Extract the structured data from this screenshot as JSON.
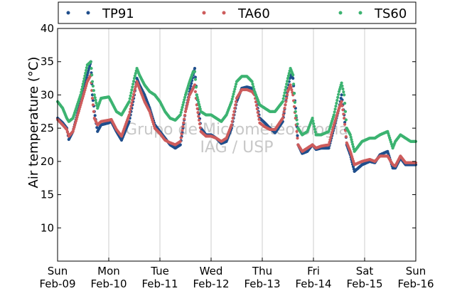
{
  "chart_data": {
    "type": "scatter",
    "title": "",
    "xlabel": "",
    "ylabel": "Air temperature (°C)",
    "x_unit": "days",
    "xlim": [
      0,
      7
    ],
    "ylim": [
      5,
      40
    ],
    "yticks": [
      10,
      15,
      20,
      25,
      30,
      35,
      40
    ],
    "xticks": [
      {
        "day": 0,
        "weekday": "Sun",
        "date": "Feb-09"
      },
      {
        "day": 1,
        "weekday": "Mon",
        "date": "Feb-10"
      },
      {
        "day": 2,
        "weekday": "Tue",
        "date": "Feb-11"
      },
      {
        "day": 3,
        "weekday": "Wed",
        "date": "Feb-12"
      },
      {
        "day": 4,
        "weekday": "Thu",
        "date": "Feb-13"
      },
      {
        "day": 5,
        "weekday": "Fri",
        "date": "Feb-14"
      },
      {
        "day": 6,
        "weekday": "Sat",
        "date": "Feb-15"
      },
      {
        "day": 7,
        "weekday": "Sun",
        "date": "Feb-16"
      }
    ],
    "grid": "vertical",
    "legend_position": "top",
    "watermark": [
      "Grupo de Micrometeorologia",
      "IAG / USP"
    ],
    "series": [
      {
        "name": "TP91",
        "color": "#1f4e8c",
        "points": [
          [
            0,
            26.5
          ],
          [
            0.1,
            25.8
          ],
          [
            0.18,
            25.0
          ],
          [
            0.22,
            23.3
          ],
          [
            0.3,
            24.5
          ],
          [
            0.45,
            29.0
          ],
          [
            0.58,
            33.0
          ],
          [
            0.65,
            35.0
          ],
          [
            0.68,
            30.0
          ],
          [
            0.72,
            27.5
          ],
          [
            0.78,
            24.5
          ],
          [
            0.85,
            25.5
          ],
          [
            1.0,
            25.8
          ],
          [
            1.05,
            26.0
          ],
          [
            1.15,
            24.5
          ],
          [
            1.25,
            23.2
          ],
          [
            1.4,
            26.0
          ],
          [
            1.5,
            30.0
          ],
          [
            1.55,
            32.5
          ],
          [
            1.6,
            31.5
          ],
          [
            1.7,
            30.0
          ],
          [
            1.8,
            28.0
          ],
          [
            1.9,
            25.5
          ],
          [
            2.0,
            24.5
          ],
          [
            2.1,
            23.5
          ],
          [
            2.2,
            22.5
          ],
          [
            2.3,
            22.0
          ],
          [
            2.4,
            22.5
          ],
          [
            2.5,
            27.5
          ],
          [
            2.58,
            30.5
          ],
          [
            2.65,
            33.0
          ],
          [
            2.68,
            34.0
          ],
          [
            2.72,
            30.0
          ],
          [
            2.8,
            25.0
          ],
          [
            2.9,
            24.0
          ],
          [
            3.0,
            24.0
          ],
          [
            3.1,
            23.5
          ],
          [
            3.2,
            22.7
          ],
          [
            3.3,
            23.0
          ],
          [
            3.4,
            25.0
          ],
          [
            3.5,
            29.0
          ],
          [
            3.6,
            31.0
          ],
          [
            3.7,
            31.2
          ],
          [
            3.8,
            31.0
          ],
          [
            3.85,
            30.5
          ],
          [
            3.95,
            26.5
          ],
          [
            4.05,
            25.8
          ],
          [
            4.15,
            25.0
          ],
          [
            4.25,
            24.3
          ],
          [
            4.4,
            26.0
          ],
          [
            4.5,
            31.0
          ],
          [
            4.55,
            33.0
          ],
          [
            4.6,
            32.5
          ],
          [
            4.65,
            28.0
          ],
          [
            4.7,
            22.5
          ],
          [
            4.78,
            21.2
          ],
          [
            4.88,
            21.5
          ],
          [
            4.98,
            22.5
          ],
          [
            5.05,
            21.8
          ],
          [
            5.15,
            22.0
          ],
          [
            5.3,
            22.0
          ],
          [
            5.4,
            25.0
          ],
          [
            5.5,
            28.0
          ],
          [
            5.55,
            30.0
          ],
          [
            5.6,
            27.0
          ],
          [
            5.65,
            22.5
          ],
          [
            5.72,
            21.0
          ],
          [
            5.8,
            18.5
          ],
          [
            5.95,
            19.5
          ],
          [
            6.1,
            20.0
          ],
          [
            6.2,
            19.8
          ],
          [
            6.3,
            21.0
          ],
          [
            6.45,
            21.5
          ],
          [
            6.55,
            19.0
          ],
          [
            6.6,
            19.0
          ],
          [
            6.7,
            20.5
          ],
          [
            6.8,
            19.5
          ],
          [
            6.9,
            19.5
          ],
          [
            7.0,
            19.5
          ]
        ]
      },
      {
        "name": "TA60",
        "color": "#cd5c5c",
        "points": [
          [
            0,
            26.3
          ],
          [
            0.1,
            25.5
          ],
          [
            0.18,
            24.8
          ],
          [
            0.22,
            23.8
          ],
          [
            0.3,
            24.5
          ],
          [
            0.45,
            28.5
          ],
          [
            0.58,
            32.0
          ],
          [
            0.65,
            33.0
          ],
          [
            0.68,
            29.5
          ],
          [
            0.72,
            26.5
          ],
          [
            0.78,
            25.5
          ],
          [
            0.85,
            26.0
          ],
          [
            1.0,
            26.2
          ],
          [
            1.05,
            26.3
          ],
          [
            1.15,
            24.8
          ],
          [
            1.25,
            23.8
          ],
          [
            1.4,
            27.0
          ],
          [
            1.5,
            30.5
          ],
          [
            1.55,
            32.0
          ],
          [
            1.6,
            31.0
          ],
          [
            1.7,
            29.0
          ],
          [
            1.8,
            27.5
          ],
          [
            1.9,
            25.0
          ],
          [
            2.0,
            24.2
          ],
          [
            2.1,
            23.2
          ],
          [
            2.2,
            22.8
          ],
          [
            2.3,
            22.5
          ],
          [
            2.4,
            23.0
          ],
          [
            2.5,
            27.5
          ],
          [
            2.58,
            30.0
          ],
          [
            2.65,
            31.0
          ],
          [
            2.68,
            31.5
          ],
          [
            2.72,
            28.5
          ],
          [
            2.8,
            24.5
          ],
          [
            2.9,
            23.8
          ],
          [
            3.0,
            23.8
          ],
          [
            3.1,
            23.5
          ],
          [
            3.2,
            23.0
          ],
          [
            3.3,
            23.5
          ],
          [
            3.4,
            25.5
          ],
          [
            3.5,
            29.5
          ],
          [
            3.6,
            30.8
          ],
          [
            3.7,
            30.8
          ],
          [
            3.8,
            30.5
          ],
          [
            3.85,
            30.0
          ],
          [
            3.95,
            25.8
          ],
          [
            4.05,
            25.2
          ],
          [
            4.15,
            24.8
          ],
          [
            4.25,
            24.8
          ],
          [
            4.4,
            26.5
          ],
          [
            4.5,
            30.5
          ],
          [
            4.55,
            31.5
          ],
          [
            4.6,
            30.0
          ],
          [
            4.65,
            26.5
          ],
          [
            4.7,
            22.5
          ],
          [
            4.78,
            21.5
          ],
          [
            4.88,
            22.0
          ],
          [
            4.98,
            22.5
          ],
          [
            5.05,
            22.0
          ],
          [
            5.15,
            22.3
          ],
          [
            5.3,
            22.5
          ],
          [
            5.4,
            25.5
          ],
          [
            5.5,
            28.0
          ],
          [
            5.55,
            29.0
          ],
          [
            5.6,
            26.5
          ],
          [
            5.65,
            22.8
          ],
          [
            5.72,
            21.5
          ],
          [
            5.8,
            19.5
          ],
          [
            5.95,
            20.0
          ],
          [
            6.1,
            20.3
          ],
          [
            6.2,
            20.0
          ],
          [
            6.3,
            20.8
          ],
          [
            6.45,
            20.8
          ],
          [
            6.55,
            19.5
          ],
          [
            6.6,
            19.3
          ],
          [
            6.7,
            20.8
          ],
          [
            6.8,
            19.8
          ],
          [
            6.9,
            19.8
          ],
          [
            7.0,
            19.8
          ]
        ]
      },
      {
        "name": "TS60",
        "color": "#3cb371",
        "points": [
          [
            0,
            29.0
          ],
          [
            0.1,
            28.0
          ],
          [
            0.18,
            26.5
          ],
          [
            0.22,
            26.0
          ],
          [
            0.3,
            26.5
          ],
          [
            0.45,
            30.0
          ],
          [
            0.58,
            34.5
          ],
          [
            0.65,
            35.0
          ],
          [
            0.68,
            32.0
          ],
          [
            0.72,
            30.0
          ],
          [
            0.78,
            28.0
          ],
          [
            0.85,
            29.5
          ],
          [
            1.0,
            29.7
          ],
          [
            1.05,
            29.0
          ],
          [
            1.15,
            27.5
          ],
          [
            1.25,
            27.0
          ],
          [
            1.4,
            29.0
          ],
          [
            1.5,
            32.5
          ],
          [
            1.55,
            34.0
          ],
          [
            1.6,
            33.0
          ],
          [
            1.7,
            31.5
          ],
          [
            1.8,
            30.5
          ],
          [
            1.9,
            30.0
          ],
          [
            2.0,
            29.0
          ],
          [
            2.1,
            27.5
          ],
          [
            2.2,
            26.5
          ],
          [
            2.3,
            26.2
          ],
          [
            2.4,
            27.0
          ],
          [
            2.5,
            30.0
          ],
          [
            2.58,
            32.0
          ],
          [
            2.65,
            33.5
          ],
          [
            2.68,
            33.5
          ],
          [
            2.72,
            30.0
          ],
          [
            2.8,
            27.5
          ],
          [
            2.9,
            27.0
          ],
          [
            3.0,
            27.0
          ],
          [
            3.1,
            26.5
          ],
          [
            3.2,
            26.0
          ],
          [
            3.3,
            27.0
          ],
          [
            3.4,
            29.0
          ],
          [
            3.5,
            32.0
          ],
          [
            3.6,
            32.8
          ],
          [
            3.7,
            32.8
          ],
          [
            3.8,
            32.0
          ],
          [
            3.85,
            30.5
          ],
          [
            3.95,
            28.5
          ],
          [
            4.05,
            28.0
          ],
          [
            4.15,
            27.5
          ],
          [
            4.25,
            27.5
          ],
          [
            4.4,
            29.0
          ],
          [
            4.5,
            32.5
          ],
          [
            4.55,
            34.0
          ],
          [
            4.6,
            33.0
          ],
          [
            4.65,
            27.5
          ],
          [
            4.7,
            25.0
          ],
          [
            4.78,
            24.0
          ],
          [
            4.88,
            24.5
          ],
          [
            4.98,
            26.5
          ],
          [
            5.05,
            24.0
          ],
          [
            5.15,
            24.0
          ],
          [
            5.3,
            24.5
          ],
          [
            5.4,
            27.0
          ],
          [
            5.5,
            30.5
          ],
          [
            5.55,
            31.8
          ],
          [
            5.6,
            30.0
          ],
          [
            5.65,
            25.0
          ],
          [
            5.72,
            24.0
          ],
          [
            5.8,
            21.5
          ],
          [
            5.95,
            23.0
          ],
          [
            6.1,
            23.5
          ],
          [
            6.2,
            23.5
          ],
          [
            6.3,
            24.0
          ],
          [
            6.45,
            24.5
          ],
          [
            6.55,
            22.0
          ],
          [
            6.6,
            23.0
          ],
          [
            6.7,
            24.0
          ],
          [
            6.8,
            23.5
          ],
          [
            6.9,
            23.0
          ],
          [
            7.0,
            23.0
          ]
        ]
      }
    ]
  }
}
